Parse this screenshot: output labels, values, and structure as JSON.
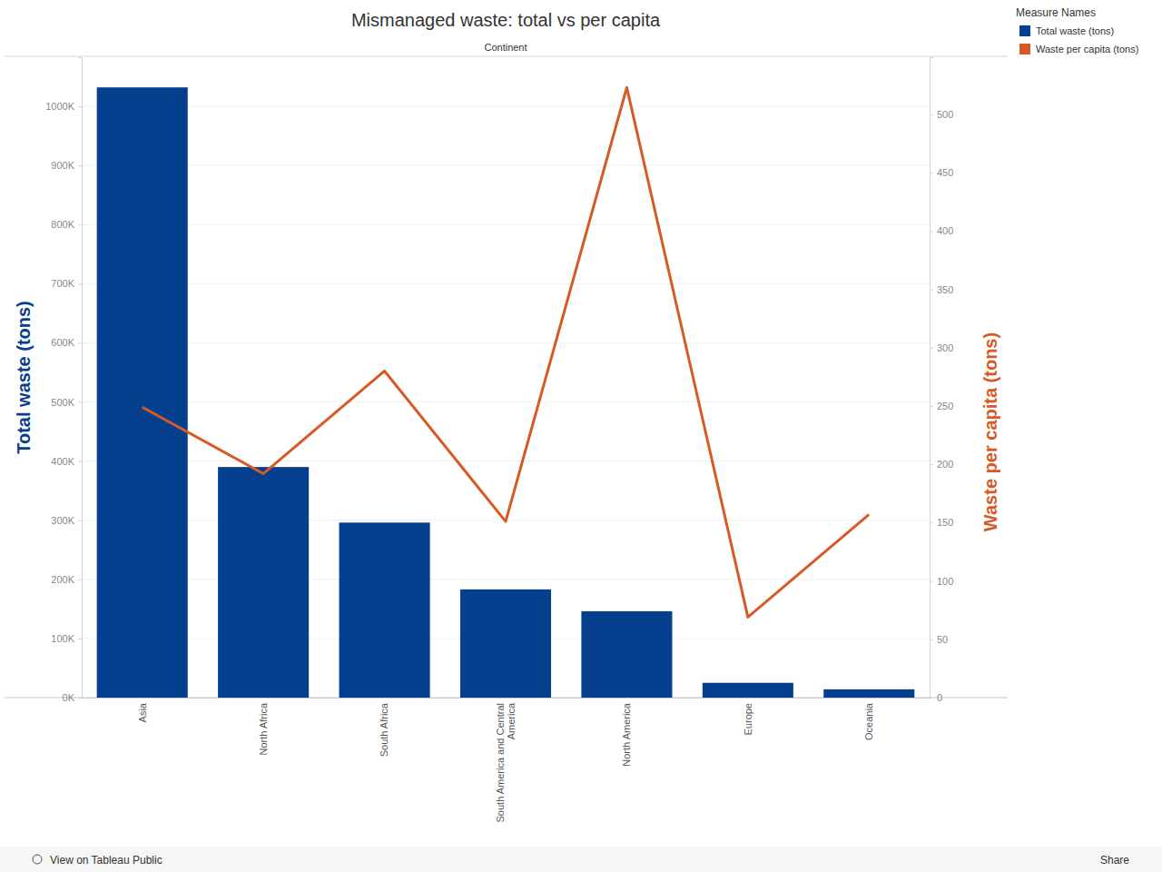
{
  "chart_data": {
    "type": "bar",
    "title": "Mismanaged waste: total vs per capita",
    "x_label": "Continent",
    "categories": [
      "Asia",
      "North Africa",
      "South Africa",
      "South America and Central America",
      "North America",
      "Europe",
      "Oceania"
    ],
    "series": [
      {
        "name": "Total waste (tons)",
        "type": "bar",
        "color": "#073f8f",
        "values": [
          1032000,
          390000,
          296000,
          183000,
          146000,
          25000,
          14000
        ]
      },
      {
        "name": "Waste per capita (tons)",
        "type": "line",
        "axis": "y2",
        "color": "#d65a25",
        "values": [
          249,
          192,
          280,
          151,
          523,
          69,
          157
        ]
      }
    ],
    "y_label": "Total waste (tons)",
    "y2_label": "Waste per capita (tons)",
    "ylim": [
      0,
      1083000
    ],
    "yticks": [
      {
        "value": 0,
        "label": "0K"
      },
      {
        "value": 100000,
        "label": "100K"
      },
      {
        "value": 200000,
        "label": "200K"
      },
      {
        "value": 300000,
        "label": "300K"
      },
      {
        "value": 400000,
        "label": "400K"
      },
      {
        "value": 500000,
        "label": "500K"
      },
      {
        "value": 600000,
        "label": "600K"
      },
      {
        "value": 700000,
        "label": "700K"
      },
      {
        "value": 800000,
        "label": "800K"
      },
      {
        "value": 900000,
        "label": "900K"
      },
      {
        "value": 1000000,
        "label": "1000K"
      }
    ],
    "y2lim": [
      0,
      549
    ],
    "y2ticks": [
      0,
      50,
      100,
      150,
      200,
      250,
      300,
      350,
      400,
      450,
      500
    ],
    "grid": true,
    "legend": "right",
    "legend_title": "Measure Names",
    "footer": {
      "link": "View on Tableau Public",
      "share": "Share"
    }
  }
}
